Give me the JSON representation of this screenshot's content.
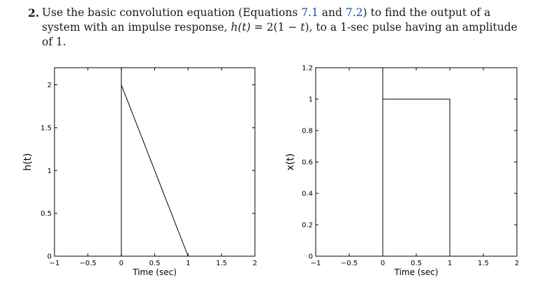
{
  "problem": {
    "number": "2.",
    "text_1": "Use the basic convolution equation (Equations ",
    "ref_1": "7.1",
    "text_2": " and ",
    "ref_2": "7.2",
    "text_3": ") to find the output of a system with an impulse response, ",
    "func": "h(t)",
    "text_4": " = 2(1 − ",
    "var": "t",
    "text_5": "), to a 1-sec pulse having an amplitude of 1."
  },
  "chart_data": [
    {
      "type": "line",
      "xlabel": "Time (sec)",
      "ylabel": "h(t)",
      "xlim": [
        -1,
        2
      ],
      "ylim": [
        0,
        2.2
      ],
      "xticks": [
        -1,
        -0.5,
        0,
        0.5,
        1,
        1.5,
        2
      ],
      "xtick_labels": [
        "−1",
        "−0.5",
        "0",
        "0.5",
        "1",
        "1.5",
        "2"
      ],
      "yticks": [
        0,
        0.5,
        1,
        1.5,
        2
      ],
      "ytick_labels": [
        "0",
        "0.5",
        "1",
        "1.5",
        "2"
      ],
      "series": [
        {
          "x": [
            0,
            0,
            0,
            1
          ],
          "y": [
            0,
            2.2,
            2,
            0
          ]
        }
      ],
      "grid": false
    },
    {
      "type": "line",
      "xlabel": "Time (sec)",
      "ylabel": "x(t)",
      "xlim": [
        -1,
        2
      ],
      "ylim": [
        0,
        1.2
      ],
      "xticks": [
        -1,
        -0.5,
        0,
        0.5,
        1,
        1.5,
        2
      ],
      "xtick_labels": [
        "−1",
        "−0.5",
        "0",
        "0.5",
        "1",
        "1.5",
        "2"
      ],
      "yticks": [
        0,
        0.2,
        0.4,
        0.6,
        0.8,
        1,
        1.2
      ],
      "ytick_labels": [
        "0",
        "0.2",
        "0.4",
        "0.6",
        "0.8",
        "1",
        "1.2"
      ],
      "series": [
        {
          "x": [
            0,
            0,
            0,
            1,
            1
          ],
          "y": [
            0,
            1.2,
            1,
            1,
            0
          ]
        }
      ],
      "grid": false
    }
  ]
}
